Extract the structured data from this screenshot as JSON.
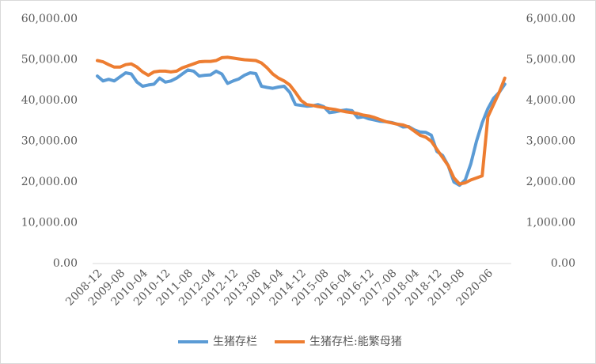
{
  "chart_data": {
    "type": "line",
    "categories": [
      "2008-12",
      null,
      null,
      null,
      "2009-08",
      null,
      null,
      null,
      "2010-04",
      null,
      null,
      null,
      "2010-12",
      null,
      null,
      null,
      "2011-08",
      null,
      null,
      null,
      "2012-04",
      null,
      null,
      null,
      "2012-12",
      null,
      null,
      null,
      "2013-08",
      null,
      null,
      null,
      "2014-04",
      null,
      null,
      null,
      "2014-12",
      null,
      null,
      null,
      "2015-08",
      null,
      null,
      null,
      "2016-04",
      null,
      null,
      null,
      "2016-12",
      null,
      null,
      null,
      "2017-08",
      null,
      null,
      null,
      "2018-04",
      null,
      null,
      null,
      "2018-12",
      null,
      null,
      null,
      "2019-08",
      null,
      null,
      null,
      null,
      "2020-06",
      null,
      null,
      null
    ],
    "series": [
      {
        "name": "生猪存栏",
        "color": "#5b9bd5",
        "axis": "y",
        "values": [
          46000,
          44800,
          45200,
          44800,
          45800,
          46800,
          46500,
          44500,
          43500,
          43800,
          44000,
          45500,
          44500,
          44800,
          45500,
          46500,
          47500,
          47200,
          46000,
          46200,
          46300,
          47200,
          46500,
          44200,
          44800,
          45300,
          46200,
          46800,
          46600,
          43500,
          43200,
          43000,
          43300,
          43500,
          42000,
          39000,
          38800,
          38600,
          38700,
          39000,
          38500,
          37000,
          37200,
          37500,
          37700,
          37500,
          35800,
          36000,
          35500,
          35200,
          34900,
          34800,
          34600,
          34200,
          33500,
          33600,
          32800,
          32300,
          32200,
          31500,
          27500,
          26500,
          24000,
          20000,
          19200,
          20500,
          24500,
          30000,
          34500,
          38000,
          40500,
          42000,
          44000
        ]
      },
      {
        "name": "生猪存栏:能繁母猪",
        "color": "#ed7d31",
        "axis": "y2",
        "values": [
          4980,
          4950,
          4880,
          4820,
          4820,
          4880,
          4900,
          4820,
          4700,
          4620,
          4700,
          4720,
          4720,
          4700,
          4720,
          4800,
          4850,
          4900,
          4950,
          4960,
          4960,
          4980,
          5050,
          5060,
          5040,
          5020,
          5000,
          4990,
          4980,
          4920,
          4800,
          4650,
          4550,
          4480,
          4380,
          4200,
          4000,
          3900,
          3880,
          3850,
          3830,
          3800,
          3780,
          3750,
          3720,
          3700,
          3680,
          3640,
          3620,
          3580,
          3530,
          3480,
          3450,
          3420,
          3400,
          3350,
          3250,
          3150,
          3100,
          3000,
          2800,
          2600,
          2400,
          2100,
          1950,
          1980,
          2050,
          2100,
          2150,
          3600,
          3900,
          4200,
          4550
        ]
      }
    ],
    "ylim": [
      0,
      60000
    ],
    "yticks": [
      {
        "value": 0,
        "label": "0.00"
      },
      {
        "value": 10000,
        "label": "10,000.00"
      },
      {
        "value": 20000,
        "label": "20,000.00"
      },
      {
        "value": 30000,
        "label": "30,000.00"
      },
      {
        "value": 40000,
        "label": "40,000.00"
      },
      {
        "value": 50000,
        "label": "50,000.00"
      },
      {
        "value": 60000,
        "label": "60,000.00"
      }
    ],
    "y2lim": [
      0,
      6000
    ],
    "y2ticks": [
      {
        "value": 0,
        "label": "0.00"
      },
      {
        "value": 1000,
        "label": "1,000.00"
      },
      {
        "value": 2000,
        "label": "2,000.00"
      },
      {
        "value": 3000,
        "label": "3,000.00"
      },
      {
        "value": 4000,
        "label": "4,000.00"
      },
      {
        "value": 5000,
        "label": "5,000.00"
      },
      {
        "value": 6000,
        "label": "6,000.00"
      }
    ],
    "legend": "bottom"
  }
}
